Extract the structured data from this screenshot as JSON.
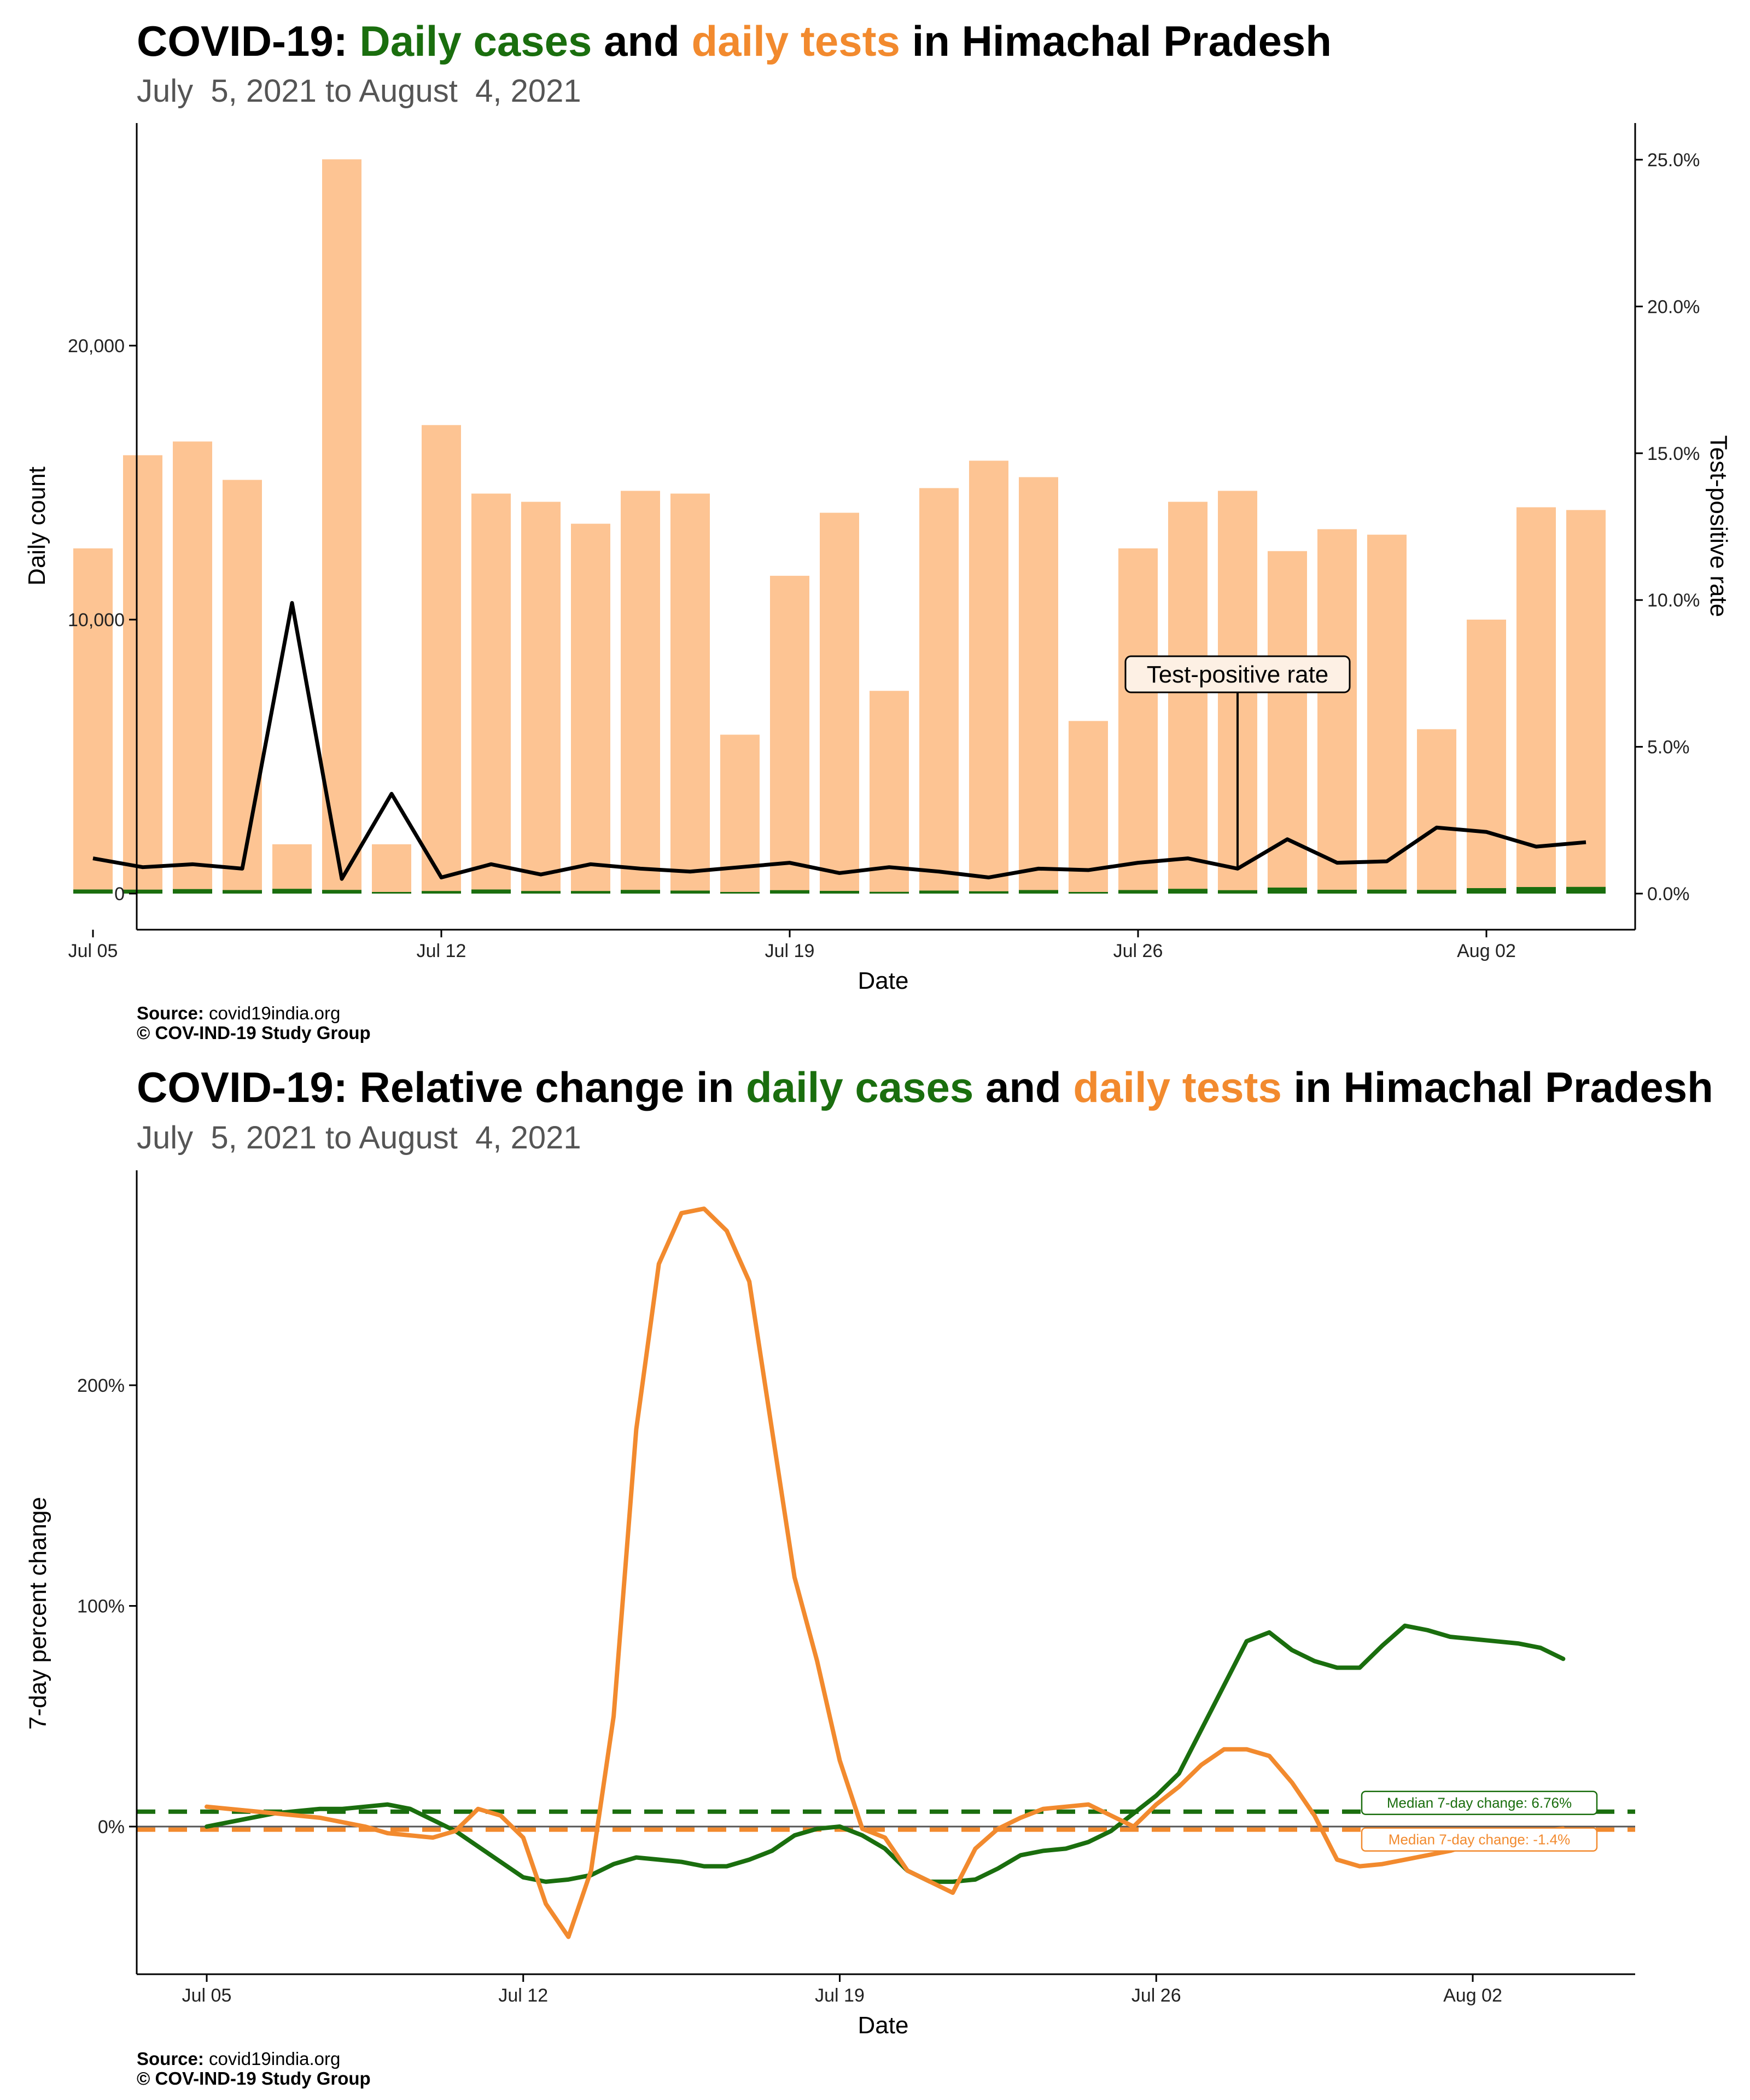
{
  "colors": {
    "cases": "#1a6e0e",
    "tests": "#f28a2e",
    "tests_bar": "#fdc493",
    "rate": "#000000"
  },
  "chart1": {
    "title_prefix": "COVID-19: ",
    "title_cases": "Daily cases",
    "title_and": " and ",
    "title_tests": "daily tests",
    "title_suffix": " in Himachal Pradesh",
    "subtitle": "July  5, 2021 to August  4, 2021",
    "source_label": "Source:",
    "source_text": " covid19india.org",
    "copyright": "© COV-IND-19 Study Group"
  },
  "chart2": {
    "title_prefix": "COVID-19: Relative change in ",
    "title_cases": "daily cases",
    "title_and": " and ",
    "title_tests": "daily tests",
    "title_suffix": " in Himachal Pradesh",
    "subtitle": "July  5, 2021 to August  4, 2021",
    "source_label": "Source:",
    "source_text": " covid19india.org",
    "copyright": "© COV-IND-19 Study Group"
  },
  "chart_data": [
    {
      "type": "bar",
      "title": "COVID-19: Daily cases and daily tests in Himachal Pradesh",
      "subtitle": "July  5, 2021 to August  4, 2021",
      "xlabel": "Date",
      "ylabel": "Daily count",
      "y2label": "Test-positive rate",
      "ylim": [
        0,
        26000
      ],
      "y2lim": [
        0,
        26
      ],
      "y_ticks": [
        0,
        10000,
        20000
      ],
      "y_tick_labels": [
        "0",
        "10,000",
        "20,000"
      ],
      "y2_ticks": [
        0,
        5,
        10,
        15,
        20,
        25
      ],
      "y2_tick_labels": [
        "0.0%",
        "5.0%",
        "10.0%",
        "15.0%",
        "20.0%",
        "25.0%"
      ],
      "x_ticks": [
        "2021-07-05",
        "2021-07-12",
        "2021-07-19",
        "2021-07-26",
        "2021-08-02"
      ],
      "x_tick_labels": [
        "Jul 05",
        "Jul 12",
        "Jul 19",
        "Jul 26",
        "Aug 02"
      ],
      "x": [
        "2021-07-05",
        "2021-07-06",
        "2021-07-07",
        "2021-07-08",
        "2021-07-09",
        "2021-07-10",
        "2021-07-11",
        "2021-07-12",
        "2021-07-13",
        "2021-07-14",
        "2021-07-15",
        "2021-07-16",
        "2021-07-17",
        "2021-07-18",
        "2021-07-19",
        "2021-07-20",
        "2021-07-21",
        "2021-07-22",
        "2021-07-23",
        "2021-07-24",
        "2021-07-25",
        "2021-07-26",
        "2021-07-27",
        "2021-07-28",
        "2021-07-29",
        "2021-07-30",
        "2021-07-31",
        "2021-08-01",
        "2021-08-02",
        "2021-08-03",
        "2021-08-04"
      ],
      "series": [
        {
          "name": "daily tests",
          "type": "bar",
          "values": [
            12600,
            16000,
            16500,
            15100,
            1800,
            26800,
            1800,
            17100,
            14600,
            14300,
            13500,
            14700,
            14600,
            5800,
            11600,
            13900,
            7400,
            14800,
            15800,
            15200,
            6300,
            12600,
            14300,
            14700,
            12500,
            13300,
            13100,
            6000,
            10000,
            14100,
            14000
          ]
        },
        {
          "name": "daily cases",
          "type": "bar",
          "values": [
            150,
            145,
            165,
            130,
            175,
            135,
            30,
            95,
            150,
            95,
            95,
            135,
            110,
            50,
            125,
            100,
            65,
            110,
            85,
            130,
            50,
            130,
            175,
            125,
            220,
            140,
            145,
            135,
            200,
            240,
            245
          ]
        },
        {
          "name": "Test-positive rate",
          "type": "line",
          "unit": "%",
          "values": [
            1.2,
            0.9,
            1.0,
            0.85,
            9.9,
            0.5,
            3.4,
            0.55,
            1.0,
            0.65,
            1.0,
            0.85,
            0.75,
            0.9,
            1.05,
            0.7,
            0.9,
            0.75,
            0.55,
            0.85,
            0.8,
            1.05,
            1.2,
            0.85,
            1.85,
            1.05,
            1.1,
            2.25,
            2.1,
            1.6,
            1.75
          ]
        }
      ],
      "annotation": {
        "text": "Test-positive rate",
        "date": "2021-07-28"
      }
    },
    {
      "type": "line",
      "title": "COVID-19: Relative change in daily cases and daily tests in Himachal Pradesh",
      "subtitle": "July  5, 2021 to August  4, 2021",
      "xlabel": "Date",
      "ylabel": "7-day percent change",
      "ylim": [
        -66,
        282
      ],
      "y_ticks": [
        0,
        100,
        200
      ],
      "y_tick_labels": [
        "0%",
        "100%",
        "200%"
      ],
      "x_ticks": [
        "2021-07-05",
        "2021-07-12",
        "2021-07-19",
        "2021-07-26",
        "2021-08-02"
      ],
      "x_tick_labels": [
        "Jul 05",
        "Jul 12",
        "Jul 19",
        "Jul 26",
        "Aug 02"
      ],
      "x": [
        "2021-07-05",
        "2021-07-05T12",
        "2021-07-06",
        "2021-07-06T12",
        "2021-07-07",
        "2021-07-07T12",
        "2021-07-08",
        "2021-07-08T12",
        "2021-07-09",
        "2021-07-09T12",
        "2021-07-10",
        "2021-07-10T12",
        "2021-07-11",
        "2021-07-11T12",
        "2021-07-12",
        "2021-07-12T12",
        "2021-07-13",
        "2021-07-13T12",
        "2021-07-14",
        "2021-07-14T12",
        "2021-07-15",
        "2021-07-15T12",
        "2021-07-16",
        "2021-07-16T12",
        "2021-07-17",
        "2021-07-17T12",
        "2021-07-18",
        "2021-07-18T12",
        "2021-07-19",
        "2021-07-19T12",
        "2021-07-20",
        "2021-07-20T12",
        "2021-07-21",
        "2021-07-21T12",
        "2021-07-22",
        "2021-07-22T12",
        "2021-07-23",
        "2021-07-23T12",
        "2021-07-24",
        "2021-07-24T12",
        "2021-07-25",
        "2021-07-25T12",
        "2021-07-26",
        "2021-07-26T12",
        "2021-07-27",
        "2021-07-27T12",
        "2021-07-28",
        "2021-07-28T12",
        "2021-07-29",
        "2021-07-29T12",
        "2021-07-30",
        "2021-07-30T12",
        "2021-07-31",
        "2021-07-31T12",
        "2021-08-01",
        "2021-08-01T12",
        "2021-08-02",
        "2021-08-02T12",
        "2021-08-03",
        "2021-08-03T12",
        "2021-08-04"
      ],
      "series": [
        {
          "name": "daily cases",
          "values": [
            0,
            2,
            4,
            6,
            7,
            8,
            8,
            9,
            10,
            8,
            3,
            -2,
            -9,
            -16,
            -23,
            -25,
            -24,
            -22,
            -17,
            -14,
            -15,
            -16,
            -18,
            -18,
            -15,
            -11,
            -4,
            -1,
            0,
            -4,
            -10,
            -20,
            -25,
            -25,
            -24,
            -19,
            -13,
            -11,
            -10,
            -7,
            -2,
            6,
            14,
            24,
            44,
            64,
            84,
            88,
            80,
            75,
            72,
            72,
            82,
            91,
            89,
            86,
            85,
            84,
            83,
            81,
            76
          ]
        },
        {
          "name": "daily tests",
          "values": [
            9,
            8,
            7,
            6,
            5,
            4,
            2,
            0,
            -3,
            -4,
            -5,
            -2,
            8,
            5,
            -5,
            -35,
            -50,
            -20,
            50,
            180,
            255,
            278,
            280,
            270,
            247,
            180,
            113,
            75,
            30,
            -1,
            -5,
            -20,
            -25,
            -30,
            -10,
            -1,
            4,
            8,
            9,
            10,
            5,
            0,
            10,
            18,
            28,
            35,
            35,
            32,
            20,
            5,
            -15,
            -18,
            -17,
            -15,
            -13,
            -11,
            -8,
            -5,
            -3,
            -2,
            -1
          ]
        }
      ],
      "median_lines": [
        {
          "name": "daily cases",
          "value": 6.76,
          "label": "Median 7-day change: 6.76%"
        },
        {
          "name": "daily tests",
          "value": -1.4,
          "label": "Median 7-day change: -1.4%"
        }
      ]
    }
  ]
}
